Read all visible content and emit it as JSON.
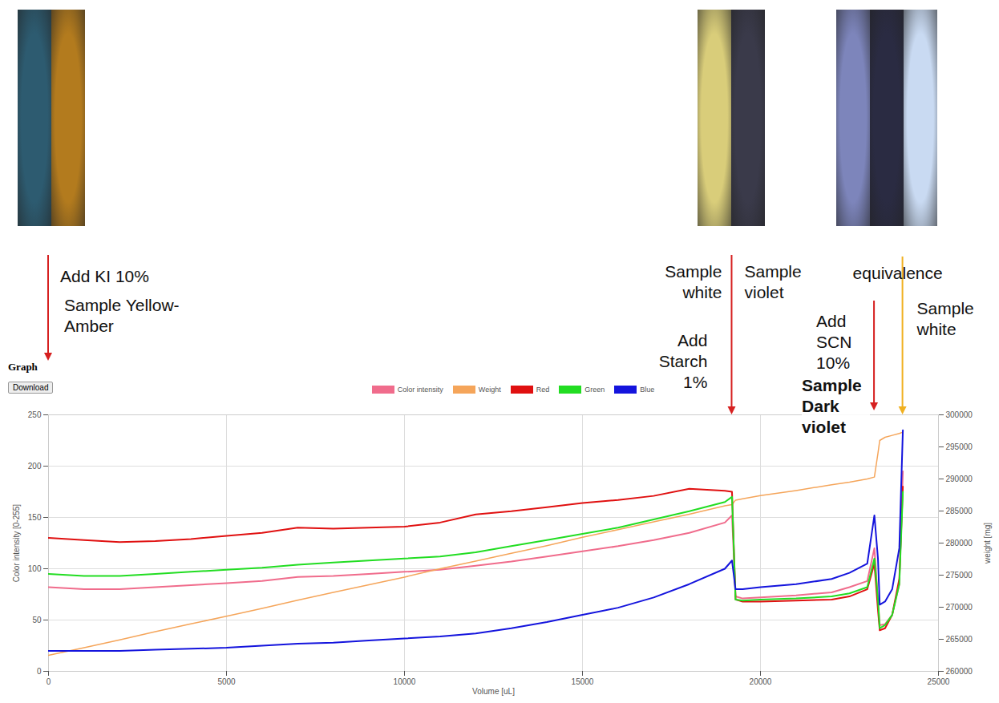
{
  "chart_data": {
    "type": "line",
    "title": "Graph",
    "button": "Download",
    "x_label": "Volume [uL]",
    "y_label": "Color intensity [0-255]",
    "y2_label": "weight [mg]",
    "x": [
      0,
      1000,
      2000,
      3000,
      4000,
      5000,
      6000,
      7000,
      8000,
      9000,
      10000,
      11000,
      12000,
      13000,
      14000,
      15000,
      16000,
      17000,
      18000,
      19000,
      19200,
      19300,
      19500,
      20000,
      21000,
      22000,
      22500,
      23000,
      23200,
      23300,
      23350,
      23500,
      23700,
      23900,
      24000
    ],
    "series": [
      {
        "name": "Color intensity",
        "color": "#f06c8c",
        "values": [
          82,
          80,
          80,
          82,
          84,
          86,
          88,
          92,
          93,
          95,
          97,
          99,
          103,
          107,
          112,
          117,
          122,
          128,
          135,
          145,
          152,
          73,
          71,
          72,
          74,
          77,
          82,
          88,
          120,
          70,
          45,
          46,
          55,
          85,
          195
        ]
      },
      {
        "name": "Weight",
        "color": "#f5a55a",
        "axis": "y2",
        "values": [
          262500,
          263700,
          264900,
          266200,
          267400,
          268600,
          269800,
          271100,
          272300,
          273500,
          274700,
          276000,
          277200,
          278400,
          279600,
          280900,
          282100,
          283300,
          284500,
          285800,
          286000,
          286700,
          286900,
          287400,
          288200,
          289100,
          289500,
          290000,
          290300,
          294000,
          296000,
          296500,
          296800,
          297100,
          297300
        ]
      },
      {
        "name": "Red",
        "color": "#e01010",
        "values": [
          130,
          128,
          126,
          127,
          129,
          132,
          135,
          140,
          139,
          140,
          141,
          145,
          153,
          156,
          160,
          164,
          167,
          171,
          178,
          176,
          175,
          70,
          68,
          68,
          69,
          70,
          73,
          80,
          105,
          60,
          40,
          42,
          55,
          90,
          180
        ]
      },
      {
        "name": "Green",
        "color": "#22dd22",
        "values": [
          95,
          93,
          93,
          95,
          97,
          99,
          101,
          104,
          106,
          108,
          110,
          112,
          116,
          122,
          128,
          134,
          140,
          148,
          156,
          165,
          170,
          70,
          69,
          70,
          71,
          73,
          76,
          82,
          110,
          70,
          42,
          45,
          55,
          85,
          175
        ]
      },
      {
        "name": "Blue",
        "color": "#1414dd",
        "values": [
          20,
          20,
          20,
          21,
          22,
          23,
          25,
          27,
          28,
          30,
          32,
          34,
          37,
          42,
          48,
          55,
          62,
          72,
          85,
          100,
          108,
          80,
          80,
          82,
          85,
          90,
          96,
          105,
          152,
          110,
          65,
          68,
          80,
          120,
          235
        ]
      }
    ],
    "xlim": [
      0,
      25000
    ],
    "xticks": [
      0,
      5000,
      10000,
      15000,
      20000,
      25000
    ],
    "ylim": [
      0,
      250
    ],
    "yticks": [
      0,
      50,
      100,
      150,
      200,
      250
    ],
    "y2lim": [
      260000,
      300000
    ],
    "y2ticks": [
      260000,
      265000,
      270000,
      275000,
      280000,
      285000,
      290000,
      295000,
      300000
    ],
    "grid": true,
    "legend": "top",
    "annotations": [
      {
        "x": 0,
        "text": "Add KI 10%"
      },
      {
        "x": 0,
        "text": "Sample Yellow-Amber"
      },
      {
        "x": 19200,
        "text": "Sample white"
      },
      {
        "x": 19200,
        "text": "Sample violet"
      },
      {
        "x": 19200,
        "text": "Add Starch 1%"
      },
      {
        "x": 24000,
        "text": "equivalence"
      },
      {
        "x": 23200,
        "text": "Add SCN 10%"
      },
      {
        "x": 23200,
        "text": "Sample Dark violet"
      },
      {
        "x": 24000,
        "text": "Sample white"
      }
    ]
  }
}
